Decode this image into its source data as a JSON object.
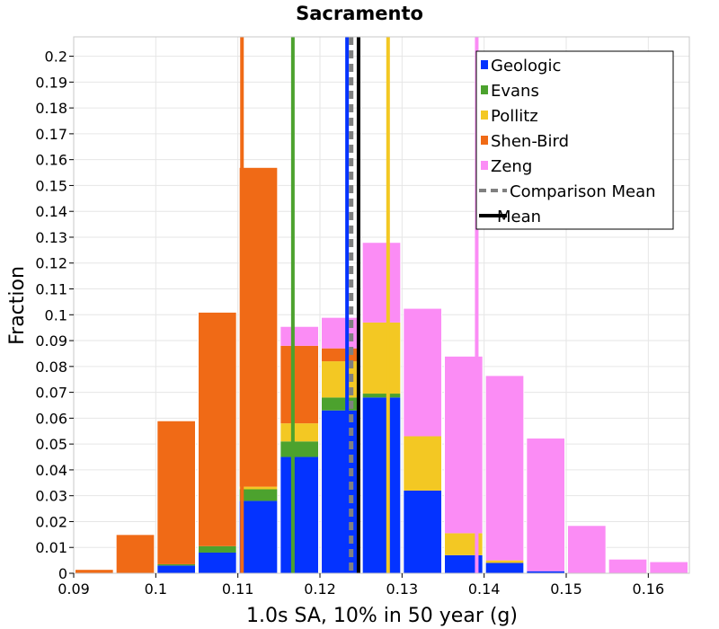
{
  "chart_data": {
    "type": "bar",
    "title": "Sacramento",
    "xlabel": "1.0s SA, 10% in 50 year (g)",
    "ylabel": "Fraction",
    "xlim": [
      0.09,
      0.165
    ],
    "ylim": [
      0,
      0.2075
    ],
    "stacked": true,
    "grid": true,
    "legend_position": "top-right",
    "x_ticks": [
      "0.09",
      "0.1",
      "0.11",
      "0.12",
      "0.13",
      "0.14",
      "0.15",
      "0.16"
    ],
    "y_ticks": [
      "0",
      "0.01",
      "0.02",
      "0.03",
      "0.04",
      "0.05",
      "0.06",
      "0.07",
      "0.08",
      "0.09",
      "0.1",
      "0.11",
      "0.12",
      "0.13",
      "0.14",
      "0.15",
      "0.16",
      "0.17",
      "0.18",
      "0.19",
      "0.2"
    ],
    "bin_centers": [
      0.0925,
      0.0975,
      0.1025,
      0.1075,
      0.1125,
      0.1175,
      0.1225,
      0.1275,
      0.1325,
      0.1375,
      0.1425,
      0.1475,
      0.1525,
      0.1575,
      0.1625
    ],
    "bin_width": 0.005,
    "series": [
      {
        "name": "Geologic",
        "color": "#0433ff",
        "values": [
          0,
          0,
          0.003,
          0.008,
          0.028,
          0.045,
          0.063,
          0.068,
          0.032,
          0.007,
          0.004,
          0.0008,
          0,
          0,
          0
        ]
      },
      {
        "name": "Evans",
        "color": "#4ca22e",
        "values": [
          0,
          0,
          0.0005,
          0.0025,
          0.0045,
          0.006,
          0.005,
          0.0015,
          0,
          0,
          0,
          0,
          0,
          0,
          0
        ]
      },
      {
        "name": "Pollitz",
        "color": "#f3c823",
        "values": [
          0,
          0,
          0,
          0,
          0.001,
          0.007,
          0.014,
          0.0275,
          0.021,
          0.0085,
          0.001,
          0,
          0,
          0,
          0
        ]
      },
      {
        "name": "Shen-Bird",
        "color": "#f06a16",
        "values": [
          0.0015,
          0.015,
          0.0555,
          0.0905,
          0.1235,
          0.03,
          0.005,
          0,
          0,
          0,
          0,
          0,
          0,
          0,
          0
        ]
      },
      {
        "name": "Zeng",
        "color": "#fb8cf5",
        "values": [
          0,
          0,
          0,
          0,
          0,
          0.0075,
          0.012,
          0.031,
          0.0495,
          0.0685,
          0.0715,
          0.0515,
          0.0185,
          0.0055,
          0.0045
        ]
      }
    ],
    "vertical_lines": [
      {
        "name": "Geologic",
        "x": 0.1233,
        "color": "#0433ff",
        "style": "solid"
      },
      {
        "name": "Evans",
        "x": 0.1167,
        "color": "#4ca22e",
        "style": "solid"
      },
      {
        "name": "Pollitz",
        "x": 0.1283,
        "color": "#f3c823",
        "style": "solid"
      },
      {
        "name": "Shen-Bird",
        "x": 0.1105,
        "color": "#f06a16",
        "style": "solid"
      },
      {
        "name": "Zeng",
        "x": 0.1391,
        "color": "#fb8cf5",
        "style": "solid"
      },
      {
        "name": "Comparison Mean",
        "x": 0.1238,
        "color": "#808080",
        "style": "dashed"
      },
      {
        "name": "Mean",
        "x": 0.1247,
        "color": "#000000",
        "style": "solid"
      }
    ],
    "legend": [
      {
        "label": "Geologic",
        "color": "#0433ff",
        "kind": "box"
      },
      {
        "label": "Evans",
        "color": "#4ca22e",
        "kind": "box"
      },
      {
        "label": "Pollitz",
        "color": "#f3c823",
        "kind": "box"
      },
      {
        "label": "Shen-Bird",
        "color": "#f06a16",
        "kind": "box"
      },
      {
        "label": "Zeng",
        "color": "#fb8cf5",
        "kind": "box"
      },
      {
        "label": "Comparison Mean",
        "color": "#808080",
        "kind": "dashed-line"
      },
      {
        "label": "Mean",
        "color": "#000000",
        "kind": "line"
      }
    ]
  }
}
